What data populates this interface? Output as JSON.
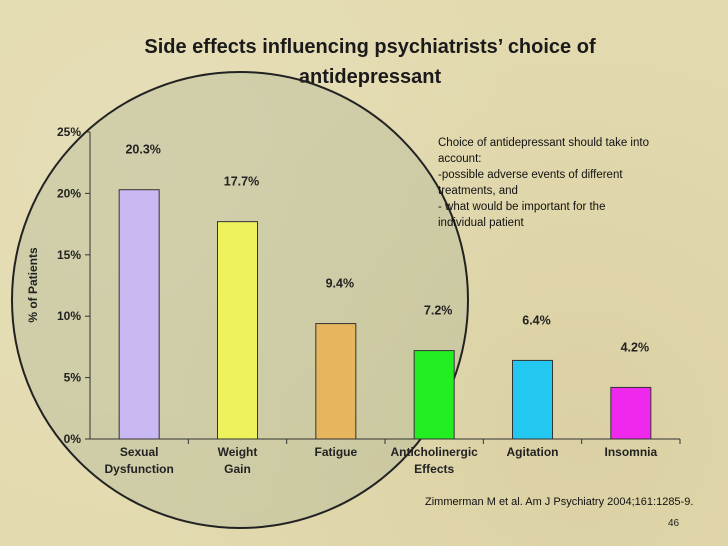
{
  "slide": {
    "title_line1": "Side effects influencing psychiatrists’ choice of",
    "title_line2": "antidepressant",
    "note": {
      "line1": "Choice of antidepressant should take into",
      "line2": "account:",
      "line3": "-possible adverse events of different",
      "line4": "treatments, and",
      "line5": "- what would be important for the",
      "line6": "individual patient"
    },
    "citation": "Zimmerman M et al. Am J Psychiatry 2004;161:1285-9.",
    "page_number": "46"
  },
  "chart_data": {
    "type": "bar",
    "title": "Side effects influencing psychiatrists’ choice of antidepressant",
    "ylabel": "% of Patients",
    "xlabel": "",
    "ylim": [
      0,
      25
    ],
    "yticks": [
      "0%",
      "5%",
      "10%",
      "15%",
      "20%",
      "25%"
    ],
    "categories": [
      [
        "Sexual",
        "Dysfunction"
      ],
      [
        "Weight",
        "Gain"
      ],
      [
        "Fatigue"
      ],
      [
        "Anticholinergic",
        "Effects"
      ],
      [
        "Agitation"
      ],
      [
        "Insomnia"
      ]
    ],
    "values": [
      20.3,
      17.7,
      9.4,
      7.2,
      6.4,
      4.2
    ],
    "value_labels": [
      "20.3%",
      "17.7%",
      "9.4%",
      "7.2%",
      "6.4%",
      "4.2%"
    ],
    "colors": [
      "#c9b8f2",
      "#eef25c",
      "#e6b55e",
      "#22ee22",
      "#22c8f0",
      "#f028ee"
    ],
    "grid": false,
    "legend": "none"
  }
}
